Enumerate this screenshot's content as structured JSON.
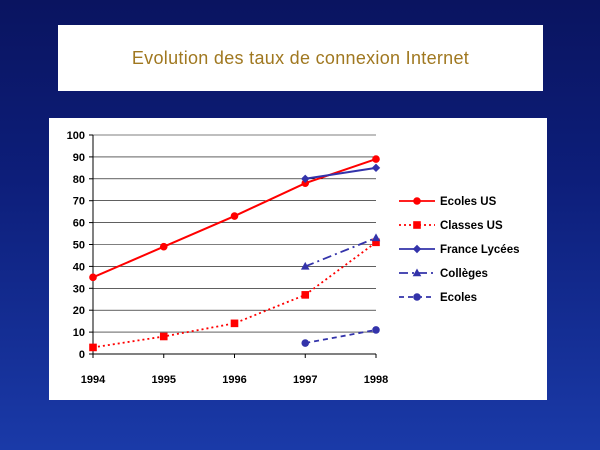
{
  "title": "Evolution des taux de connexion Internet",
  "chart_data": {
    "type": "line",
    "title": "Evolution des taux de connexion Internet",
    "xlabel": "",
    "ylabel": "",
    "x": [
      1994,
      1995,
      1996,
      1997,
      1998
    ],
    "xticks": [
      "1994",
      "1995",
      "1996",
      "1997",
      "1998"
    ],
    "yticks": [
      "0",
      "10",
      "20",
      "30",
      "40",
      "50",
      "60",
      "70",
      "80",
      "90",
      "100"
    ],
    "ylim": [
      0,
      100
    ],
    "grid": true,
    "legend_position": "right",
    "series": [
      {
        "name": "Ecoles US",
        "x": [
          1994,
          1995,
          1996,
          1997,
          1998
        ],
        "values": [
          35,
          49,
          63,
          78,
          89
        ],
        "color": "#ff0000",
        "marker": "circle",
        "dash": "solid"
      },
      {
        "name": "Classes US",
        "x": [
          1994,
          1995,
          1996,
          1997,
          1998
        ],
        "values": [
          3,
          8,
          14,
          27,
          51
        ],
        "color": "#ff0000",
        "marker": "square",
        "dash": "dotted"
      },
      {
        "name": "France Lycées",
        "x": [
          1997,
          1998
        ],
        "values": [
          80,
          85
        ],
        "color": "#3333aa",
        "marker": "diamond",
        "dash": "solid"
      },
      {
        "name": "Collèges",
        "x": [
          1997,
          1998
        ],
        "values": [
          40,
          53
        ],
        "color": "#3333aa",
        "marker": "triangle",
        "dash": "dashdot"
      },
      {
        "name": "Ecoles",
        "x": [
          1997,
          1998
        ],
        "values": [
          5,
          11
        ],
        "color": "#3333aa",
        "marker": "circle",
        "dash": "dashed"
      }
    ]
  }
}
